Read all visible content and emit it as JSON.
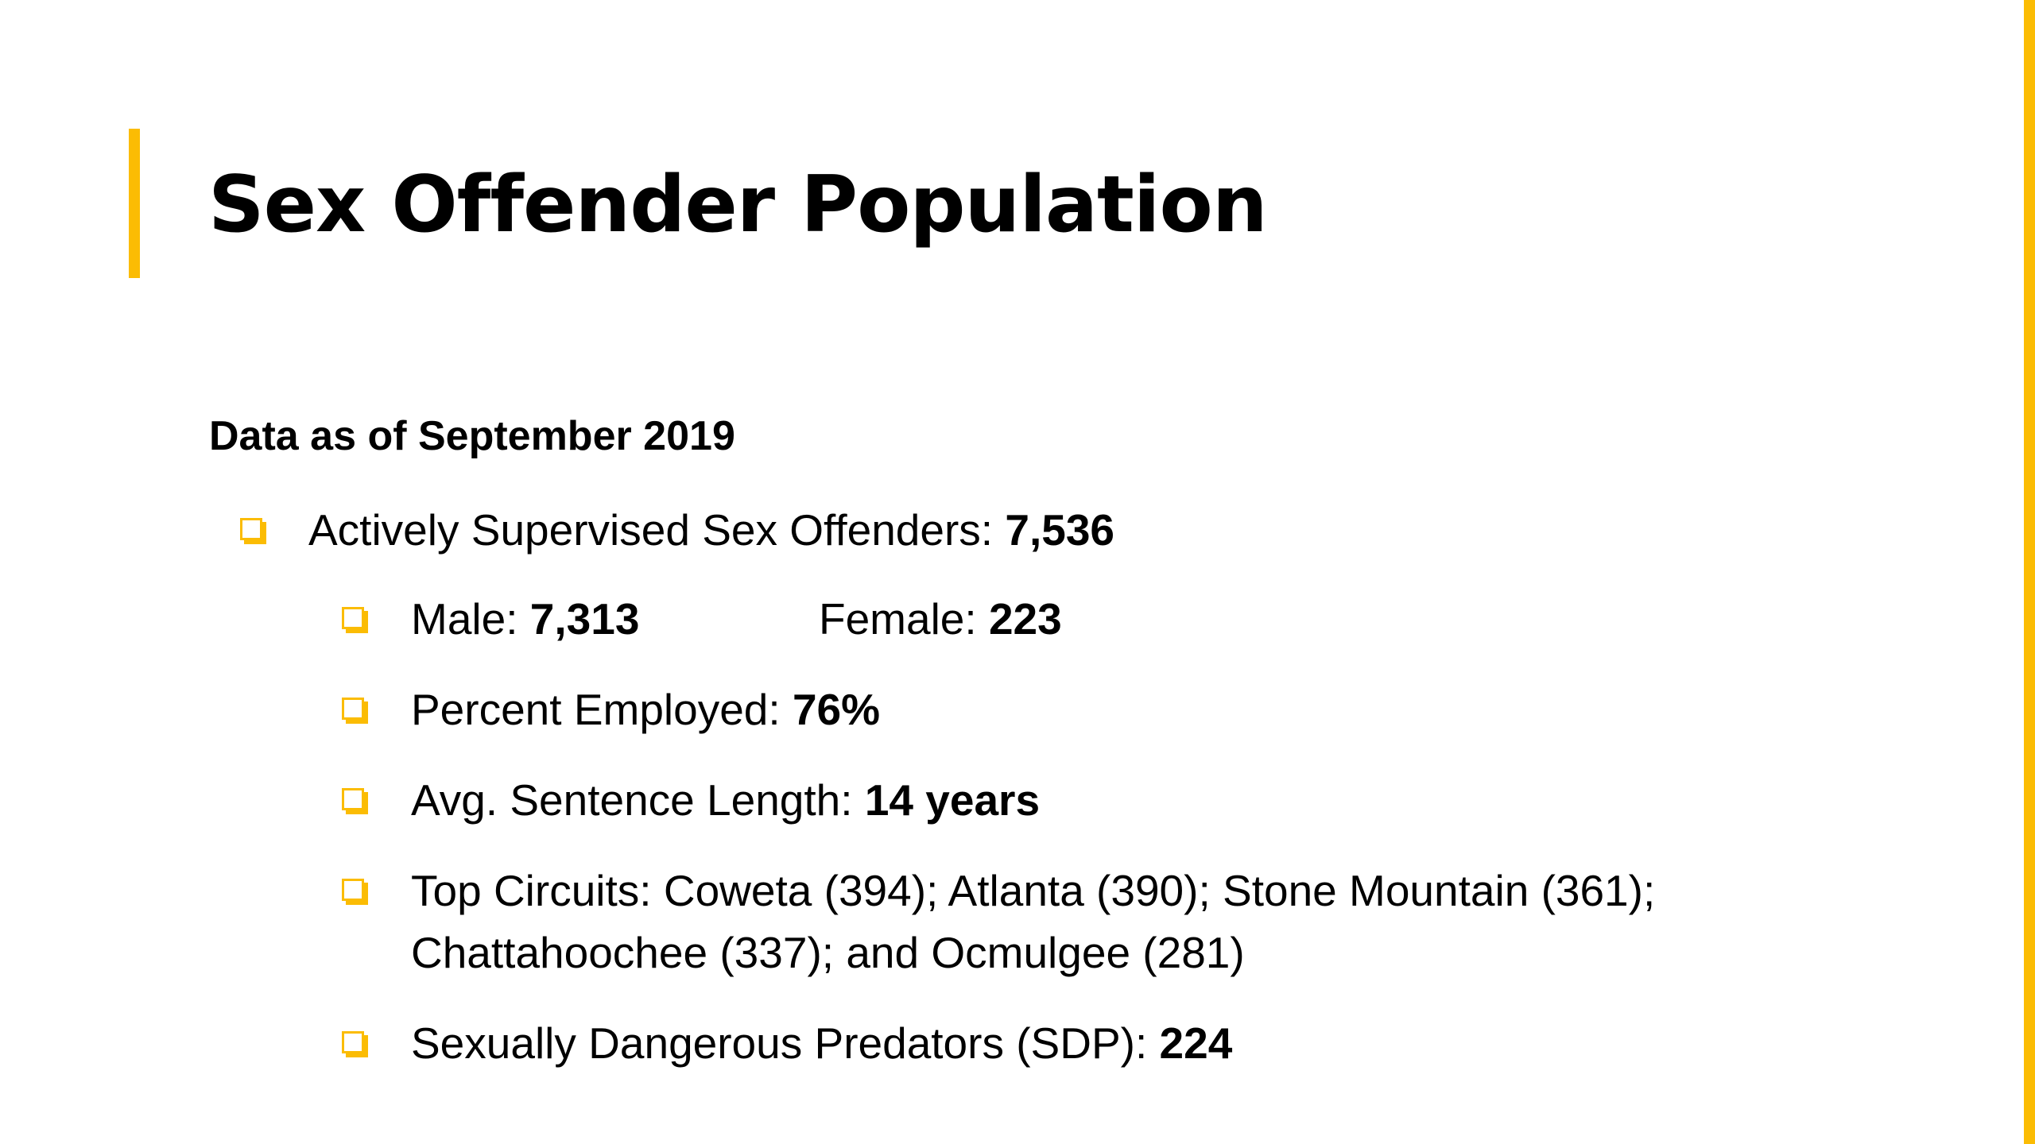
{
  "slide": {
    "title": "Sex Offender Population",
    "subtitle": "Data as of September 2019",
    "accent_color": "#FBBC04",
    "bullet_icon": "hollow-square-bullet-icon",
    "items": [
      {
        "label": "Actively Supervised Sex Offenders: ",
        "value": "7,536"
      },
      {
        "label": "Male: ",
        "value": "7,313",
        "label2": "Female: ",
        "value2": "223"
      },
      {
        "label": "Percent Employed: ",
        "value": "76%"
      },
      {
        "label": "Avg. Sentence Length: ",
        "value": "14 years"
      },
      {
        "line1": "Top Circuits: Coweta (394); Atlanta (390); Stone Mountain (361);",
        "line2": "Chattahoochee (337); and Ocmulgee (281)"
      },
      {
        "label": "Sexually Dangerous Predators (SDP): ",
        "value": "224"
      }
    ]
  }
}
